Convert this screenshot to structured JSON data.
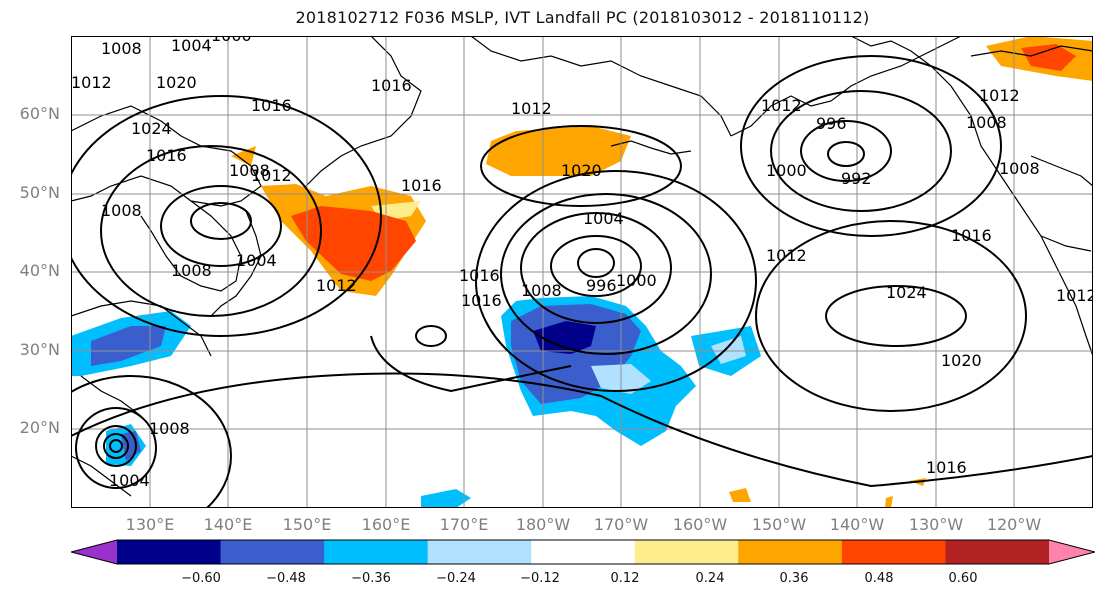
{
  "title": "2018102712 F036 MSLP, IVT Landfall PC (2018103012 - 2018110112)",
  "lat_labels": [
    "60°N",
    "50°N",
    "40°N",
    "30°N",
    "20°N"
  ],
  "lon_labels": [
    "130°E",
    "140°E",
    "150°E",
    "160°E",
    "170°E",
    "180°W",
    "170°W",
    "160°W",
    "150°W",
    "140°W",
    "130°W",
    "120°W"
  ],
  "colorbar": {
    "colors": [
      "#9932cc",
      "#00008b",
      "#3a5fcd",
      "#00bfff",
      "#b0e2ff",
      "#ffffff",
      "#ffec8b",
      "#ffa500",
      "#ff4500",
      "#b22222",
      "#ff82ab"
    ],
    "ticks": [
      "−0.60",
      "−0.48",
      "−0.36",
      "−0.24",
      "−0.12",
      "0.12",
      "0.24",
      "0.36",
      "0.48",
      "0.60"
    ]
  },
  "isobar_labels": [
    "1008",
    "1004",
    "1000",
    "1012",
    "1020",
    "1016",
    "1016",
    "1012",
    "1016",
    "1024",
    "1008",
    "1008",
    "1016",
    "1004",
    "1012",
    "1008",
    "1016",
    "1020",
    "1004",
    "1008",
    "996",
    "1000",
    "1016",
    "1012",
    "996",
    "992",
    "1000",
    "1012",
    "1016",
    "1012",
    "1008",
    "1008",
    "1012",
    "1024",
    "1020",
    "1016",
    "1008",
    "1004",
    "1012"
  ]
}
